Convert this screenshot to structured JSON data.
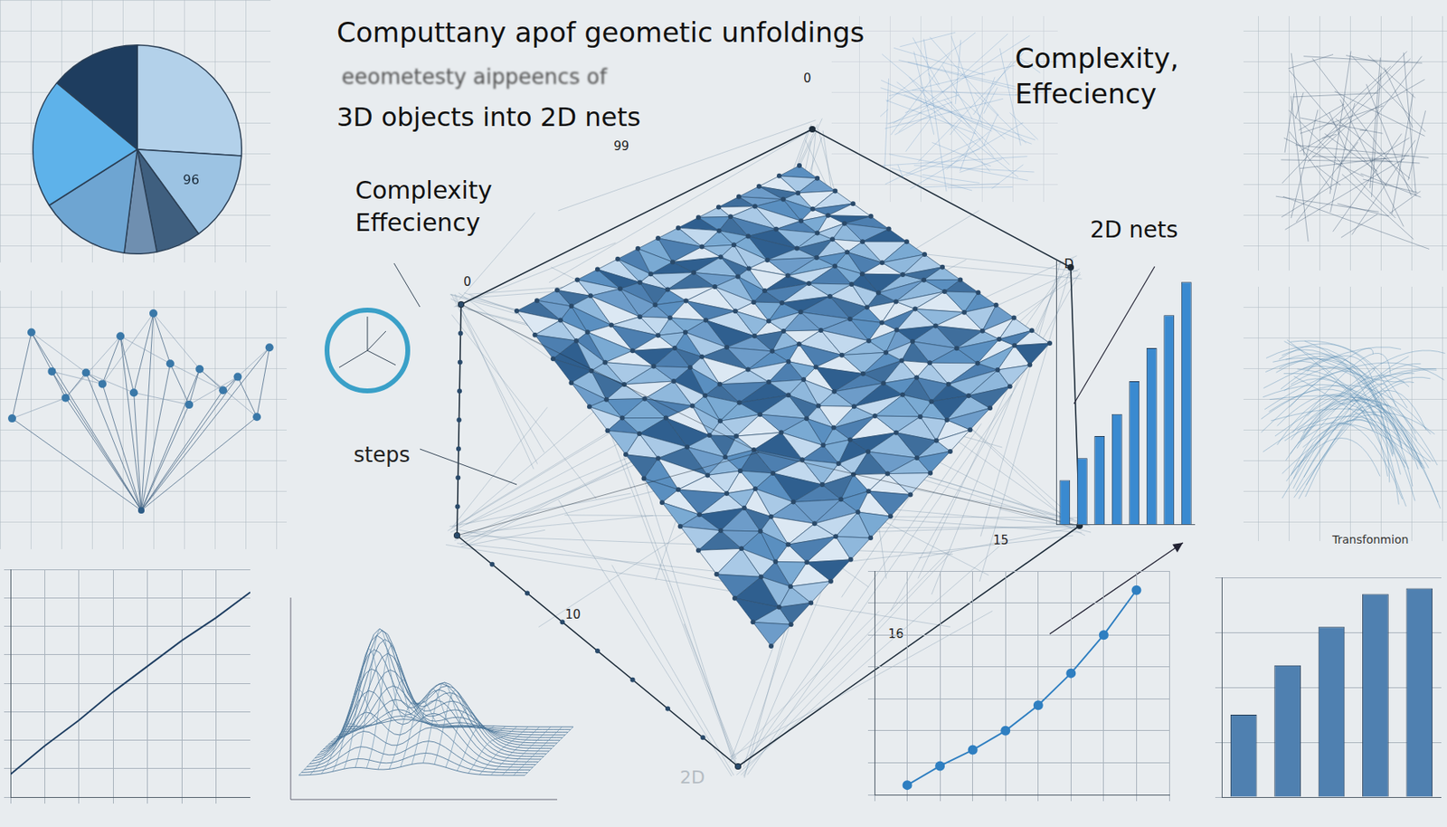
{
  "title": "Computtany apof geometic unfoldings",
  "subtitle": [
    "eeometesty aippeencs of",
    "3D objects into 2D nets"
  ],
  "labels": {
    "complexity_left": [
      "Complexity",
      "Effeciency"
    ],
    "complexity_right": [
      "Complexity,",
      "Effeciency"
    ],
    "nets": "2D nets",
    "steps": "steps",
    "transformation": "Transfonmion",
    "faint": "2D"
  },
  "marks": [
    "0",
    "99",
    "D",
    "15",
    "16",
    "10",
    "0"
  ],
  "chart_data": [
    {
      "type": "pie",
      "values": [
        26,
        14,
        7,
        5,
        14,
        20,
        14
      ],
      "colors": [
        "#b3d1ea",
        "#9cc3e3",
        "#3f5f7f",
        "#6f8fb0",
        "#6ea5d2",
        "#5eb2ea",
        "#1e3d5f"
      ],
      "annotations": [
        "96"
      ]
    },
    {
      "type": "bar",
      "categories": [
        null,
        null,
        null,
        null,
        null,
        null,
        null,
        null
      ],
      "values": [
        4,
        6,
        8,
        10,
        13,
        16,
        19,
        22
      ],
      "ylim": [
        0,
        24
      ],
      "grid": false,
      "tick_labels": false,
      "color": "#3a8ad0"
    },
    {
      "type": "line",
      "x": [
        1,
        2,
        3,
        4,
        5,
        6,
        7,
        8
      ],
      "values": [
        3,
        9,
        14,
        20,
        28,
        38,
        50,
        64
      ],
      "xlim": [
        0,
        9
      ],
      "xticks": [
        0,
        1,
        2,
        3,
        4,
        5,
        6,
        7,
        8,
        9
      ],
      "ylim": [
        0,
        70
      ],
      "yticks": [
        0,
        10,
        20,
        30,
        40,
        50,
        60,
        70
      ],
      "grid": true,
      "tick_labels": false,
      "color": "#2f7fc1",
      "marker": "circle"
    },
    {
      "type": "bar",
      "categories": [
        null,
        null,
        null,
        null,
        null
      ],
      "values": [
        30,
        48,
        62,
        74,
        76
      ],
      "ylim": [
        0,
        80
      ],
      "yticks": [
        0,
        20,
        40,
        60,
        80
      ],
      "grid": true,
      "tick_labels": false,
      "color": "#4f80b0"
    },
    {
      "type": "line",
      "x": [
        0,
        1,
        2,
        3,
        4,
        5,
        6,
        7
      ],
      "values": [
        8,
        18,
        27,
        37,
        46,
        55,
        63,
        72
      ],
      "xlim": [
        0,
        7
      ],
      "xticks": [
        0,
        1,
        2,
        3,
        4,
        5,
        6,
        7
      ],
      "ylim": [
        0,
        80
      ],
      "yticks": [
        0,
        10,
        20,
        30,
        40,
        50,
        60,
        70,
        80
      ],
      "grid": true,
      "tick_labels": false,
      "color": "#1f3f63",
      "marker": "none"
    }
  ]
}
